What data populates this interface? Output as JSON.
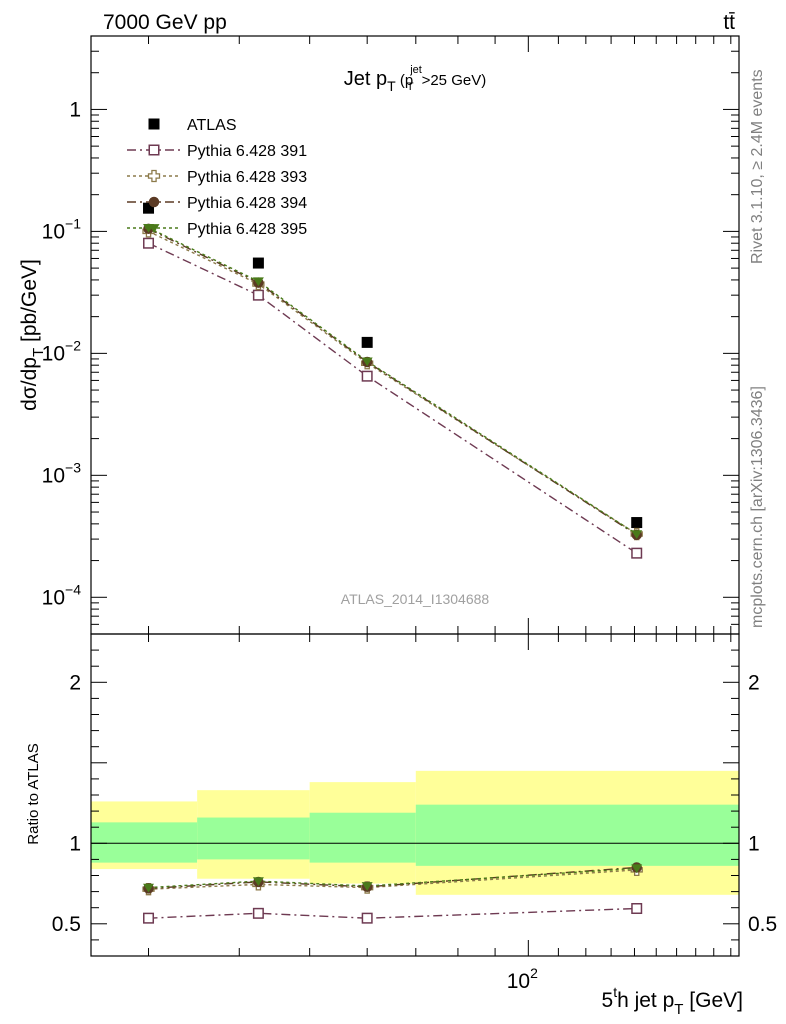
{
  "header": {
    "energy_label": "7000 GeV pp",
    "process_label": "tt̄"
  },
  "side_labels": {
    "rivet": "Rivet 3.1.10, ≥ 2.4M events",
    "mcplots": "mcplots.cern.ch [arXiv:1306.3436]"
  },
  "analysis_tag": "ATLAS_2014_I1304688",
  "chart_data": [
    {
      "type": "scatter",
      "panel": "main",
      "title": "Jet p_T (p_T^jet > 25 GeV)",
      "title_main": "Jet p",
      "title_sub": "T",
      "title_paren_open": " (p",
      "title_paren_sup": "jet",
      "title_paren_sub": "T",
      "title_paren_close": ">25 GeV)",
      "ylabel": "dσ/dp_T [pb/GeV]",
      "ylabel_main": "dσ/dp",
      "ylabel_sub": "T",
      "ylabel_tail": " [pb/GeV]",
      "xscale": "log",
      "yscale": "log",
      "xlim": [
        25,
        195
      ],
      "ylim": [
        5e-05,
        4
      ],
      "yticks": [
        {
          "value": 1,
          "base": "1",
          "exp": ""
        },
        {
          "value": 0.1,
          "base": "10",
          "exp": "−1"
        },
        {
          "value": 0.01,
          "base": "10",
          "exp": "−2"
        },
        {
          "value": 0.001,
          "base": "10",
          "exp": "−3"
        },
        {
          "value": 0.0001,
          "base": "10",
          "exp": "−4"
        }
      ],
      "legend_position": "top-left",
      "x": [
        30,
        42.5,
        60,
        141
      ],
      "series": [
        {
          "name": "ATLAS",
          "color": "#000000",
          "marker": "filled-square",
          "values": [
            0.155,
            0.055,
            0.0123,
            0.00041
          ],
          "errors": [
            0.01,
            0.004,
            0.001,
            3e-05
          ]
        },
        {
          "name": "Pythia 6.428 391",
          "color": "#6e3a52",
          "marker": "open-square",
          "line": "dashdot",
          "values": [
            0.08,
            0.03,
            0.0065,
            0.00023
          ]
        },
        {
          "name": "Pythia 6.428 393",
          "color": "#8c7a4a",
          "marker": "open-cross",
          "line": "dotted",
          "values": [
            0.1,
            0.037,
            0.0083,
            0.00033
          ]
        },
        {
          "name": "Pythia 6.428 394",
          "color": "#5b3a24",
          "marker": "filled-circle",
          "line": "dashdot",
          "values": [
            0.105,
            0.038,
            0.0085,
            0.000325
          ]
        },
        {
          "name": "Pythia 6.428 395",
          "color": "#4a7a1a",
          "marker": "filled-triangle",
          "line": "dotted",
          "values": [
            0.107,
            0.039,
            0.0086,
            0.00033
          ]
        }
      ]
    },
    {
      "type": "scatter",
      "panel": "ratio",
      "ylabel": "Ratio to ATLAS",
      "xlabel": "5^th jet p_T [GeV]",
      "xlabel_a": "5",
      "xlabel_sup": "t",
      "xlabel_b": "h jet p",
      "xlabel_sub": "T",
      "xlabel_c": " [GeV]",
      "xscale": "log",
      "xlim": [
        25,
        195
      ],
      "ylim": [
        0.3,
        2.3
      ],
      "yticks": [
        {
          "value": 0.5,
          "label": "0.5"
        },
        {
          "value": 1,
          "label": "1"
        },
        {
          "value": 2,
          "label": "2"
        }
      ],
      "xtick_label": {
        "value": 100,
        "base": "10",
        "exp": "2"
      },
      "bands": [
        {
          "xlo": 25,
          "xhi": 35,
          "green": [
            0.88,
            1.13
          ],
          "yellow": [
            0.84,
            1.26
          ]
        },
        {
          "xlo": 35,
          "xhi": 50,
          "green": [
            0.9,
            1.16
          ],
          "yellow": [
            0.78,
            1.33
          ]
        },
        {
          "xlo": 50,
          "xhi": 70,
          "green": [
            0.88,
            1.19
          ],
          "yellow": [
            0.75,
            1.38
          ]
        },
        {
          "xlo": 70,
          "xhi": 195,
          "green": [
            0.86,
            1.24
          ],
          "yellow": [
            0.68,
            1.45
          ]
        }
      ],
      "reference_line": 1,
      "x": [
        30,
        42.5,
        60,
        141
      ],
      "series": [
        {
          "name": "Pythia 6.428 391",
          "color": "#6e3a52",
          "marker": "open-square",
          "line": "dashdot",
          "values": [
            0.535,
            0.565,
            0.535,
            0.595
          ]
        },
        {
          "name": "Pythia 6.428 393",
          "color": "#8c7a4a",
          "marker": "open-cross",
          "line": "dotted",
          "values": [
            0.715,
            0.745,
            0.725,
            0.835
          ]
        },
        {
          "name": "Pythia 6.428 394",
          "color": "#5b3a24",
          "marker": "filled-circle",
          "line": "dashdot",
          "values": [
            0.72,
            0.76,
            0.73,
            0.85
          ]
        },
        {
          "name": "Pythia 6.428 395",
          "color": "#4a7a1a",
          "marker": "filled-triangle",
          "line": "dotted",
          "values": [
            0.725,
            0.765,
            0.735,
            0.845
          ]
        }
      ]
    }
  ]
}
